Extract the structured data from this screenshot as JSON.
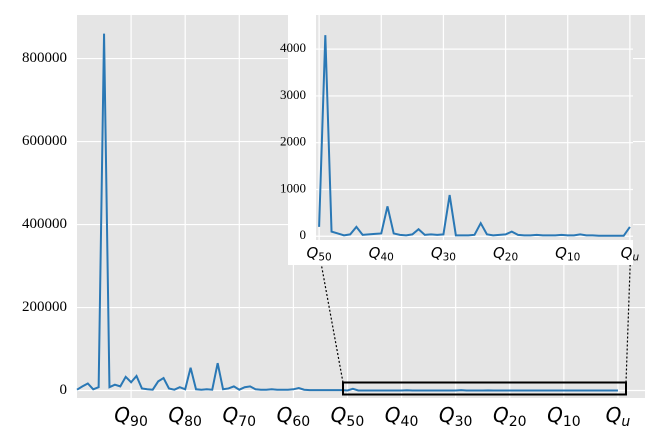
{
  "chart_data": [
    {
      "type": "line",
      "x": [
        0,
        1,
        2,
        3,
        4,
        5,
        6,
        7,
        8,
        9,
        10,
        11,
        12,
        13,
        14,
        15,
        16,
        17,
        18,
        19,
        20,
        21,
        22,
        23,
        24,
        25,
        26,
        27,
        28,
        29,
        30,
        31,
        32,
        33,
        34,
        35,
        36,
        37,
        38,
        39,
        40,
        41,
        42,
        43,
        44,
        45,
        46,
        47,
        48,
        49,
        50,
        51,
        52,
        53,
        54,
        55,
        56,
        57,
        58,
        59,
        60,
        61,
        62,
        63,
        64,
        65,
        66,
        67,
        68,
        69,
        70,
        71,
        72,
        73,
        74,
        75,
        76,
        77,
        78,
        79,
        80,
        81,
        82,
        83,
        84,
        85,
        86,
        87,
        88,
        89,
        90,
        91,
        92,
        93,
        94,
        95,
        96,
        97,
        98,
        99,
        100
      ],
      "series": [
        {
          "color": "#2a78b5",
          "values": [
            2000,
            10000,
            17000,
            3000,
            8000,
            860000,
            8000,
            14000,
            10000,
            33000,
            20000,
            35000,
            5000,
            3000,
            2000,
            22000,
            30000,
            5000,
            2000,
            8000,
            3000,
            55000,
            3000,
            2000,
            3000,
            2000,
            66000,
            3000,
            5000,
            10000,
            2000,
            8000,
            10000,
            3000,
            2000,
            2000,
            3000,
            2000,
            2000,
            2000,
            3000,
            6000,
            2000,
            1000,
            1000,
            1000,
            1000,
            1000,
            1000,
            1000,
            200,
            4300,
            100,
            60,
            20,
            40,
            200,
            30,
            40,
            50,
            60,
            640,
            60,
            30,
            20,
            40,
            150,
            30,
            40,
            30,
            40,
            880,
            20,
            20,
            20,
            30,
            280,
            40,
            20,
            30,
            40,
            100,
            30,
            20,
            20,
            30,
            20,
            20,
            20,
            30,
            20,
            20,
            40,
            20,
            20,
            10,
            10,
            10,
            10,
            10,
            200
          ]
        }
      ],
      "xlim": [
        0,
        105
      ],
      "ylim": [
        -18000,
        905000
      ],
      "xticks": [
        {
          "value": 10,
          "label": "Q90"
        },
        {
          "value": 20,
          "label": "Q80"
        },
        {
          "value": 30,
          "label": "Q70"
        },
        {
          "value": 40,
          "label": "Q60"
        },
        {
          "value": 50,
          "label": "Q50"
        },
        {
          "value": 60,
          "label": "Q40"
        },
        {
          "value": 70,
          "label": "Q30"
        },
        {
          "value": 80,
          "label": "Q20"
        },
        {
          "value": 90,
          "label": "Q10"
        },
        {
          "value": 100,
          "label": "Qu"
        }
      ],
      "yticks": [
        0,
        200000,
        400000,
        600000,
        800000
      ],
      "grid": true
    },
    {
      "type": "line",
      "x": [
        50,
        51,
        52,
        53,
        54,
        55,
        56,
        57,
        58,
        59,
        60,
        61,
        62,
        63,
        64,
        65,
        66,
        67,
        68,
        69,
        70,
        71,
        72,
        73,
        74,
        75,
        76,
        77,
        78,
        79,
        80,
        81,
        82,
        83,
        84,
        85,
        86,
        87,
        88,
        89,
        90,
        91,
        92,
        93,
        94,
        95,
        96,
        97,
        98,
        99,
        100
      ],
      "series": [
        {
          "color": "#2a78b5",
          "values": [
            200,
            4300,
            100,
            60,
            20,
            40,
            200,
            30,
            40,
            50,
            60,
            640,
            60,
            30,
            20,
            40,
            150,
            30,
            40,
            30,
            40,
            880,
            20,
            20,
            20,
            30,
            280,
            40,
            20,
            30,
            40,
            100,
            30,
            20,
            20,
            30,
            20,
            20,
            20,
            30,
            20,
            20,
            40,
            20,
            20,
            10,
            10,
            10,
            10,
            10,
            200
          ]
        }
      ],
      "xlim": [
        49.5,
        100.5
      ],
      "ylim": [
        -80,
        4730
      ],
      "xticks": [
        {
          "value": 50,
          "label": "Q50"
        },
        {
          "value": 60,
          "label": "Q40"
        },
        {
          "value": 70,
          "label": "Q30"
        },
        {
          "value": 80,
          "label": "Q20"
        },
        {
          "value": 90,
          "label": "Q10"
        },
        {
          "value": 100,
          "label": "Qu"
        }
      ],
      "yticks": [
        0,
        1000,
        2000,
        3000,
        4000
      ],
      "grid": true
    }
  ]
}
